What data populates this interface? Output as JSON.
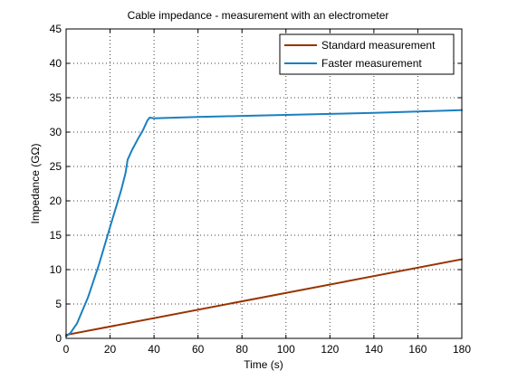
{
  "chart_data": {
    "type": "line",
    "title": "Cable impedance - measurement with an electrometer",
    "xlabel": "Time (s)",
    "ylabel": "Impedance (GΩ)",
    "xlim": [
      0,
      180
    ],
    "ylim": [
      0,
      45
    ],
    "xticks": [
      0,
      20,
      40,
      60,
      80,
      100,
      120,
      140,
      160,
      180
    ],
    "yticks": [
      0,
      5,
      10,
      15,
      20,
      25,
      30,
      35,
      40,
      45
    ],
    "grid": true,
    "legend_position": "top-right",
    "series": [
      {
        "name": "Standard measurement",
        "color": "#993300",
        "points": [
          [
            0,
            0.5
          ],
          [
            180,
            11.5
          ]
        ]
      },
      {
        "name": "Faster measurement",
        "color": "#1a80c0",
        "points": [
          [
            0,
            0.3
          ],
          [
            2,
            0.8
          ],
          [
            5,
            2.2
          ],
          [
            10,
            6.0
          ],
          [
            15,
            10.8
          ],
          [
            20,
            16.2
          ],
          [
            25,
            21.5
          ],
          [
            27,
            24.0
          ],
          [
            28,
            26.0
          ],
          [
            30,
            27.4
          ],
          [
            33,
            29.2
          ],
          [
            35,
            30.3
          ],
          [
            37,
            31.7
          ],
          [
            38,
            32.1
          ],
          [
            40,
            32.0
          ],
          [
            60,
            32.2
          ],
          [
            80,
            32.35
          ],
          [
            100,
            32.5
          ],
          [
            120,
            32.65
          ],
          [
            140,
            32.8
          ],
          [
            160,
            33.0
          ],
          [
            180,
            33.2
          ]
        ]
      }
    ]
  }
}
